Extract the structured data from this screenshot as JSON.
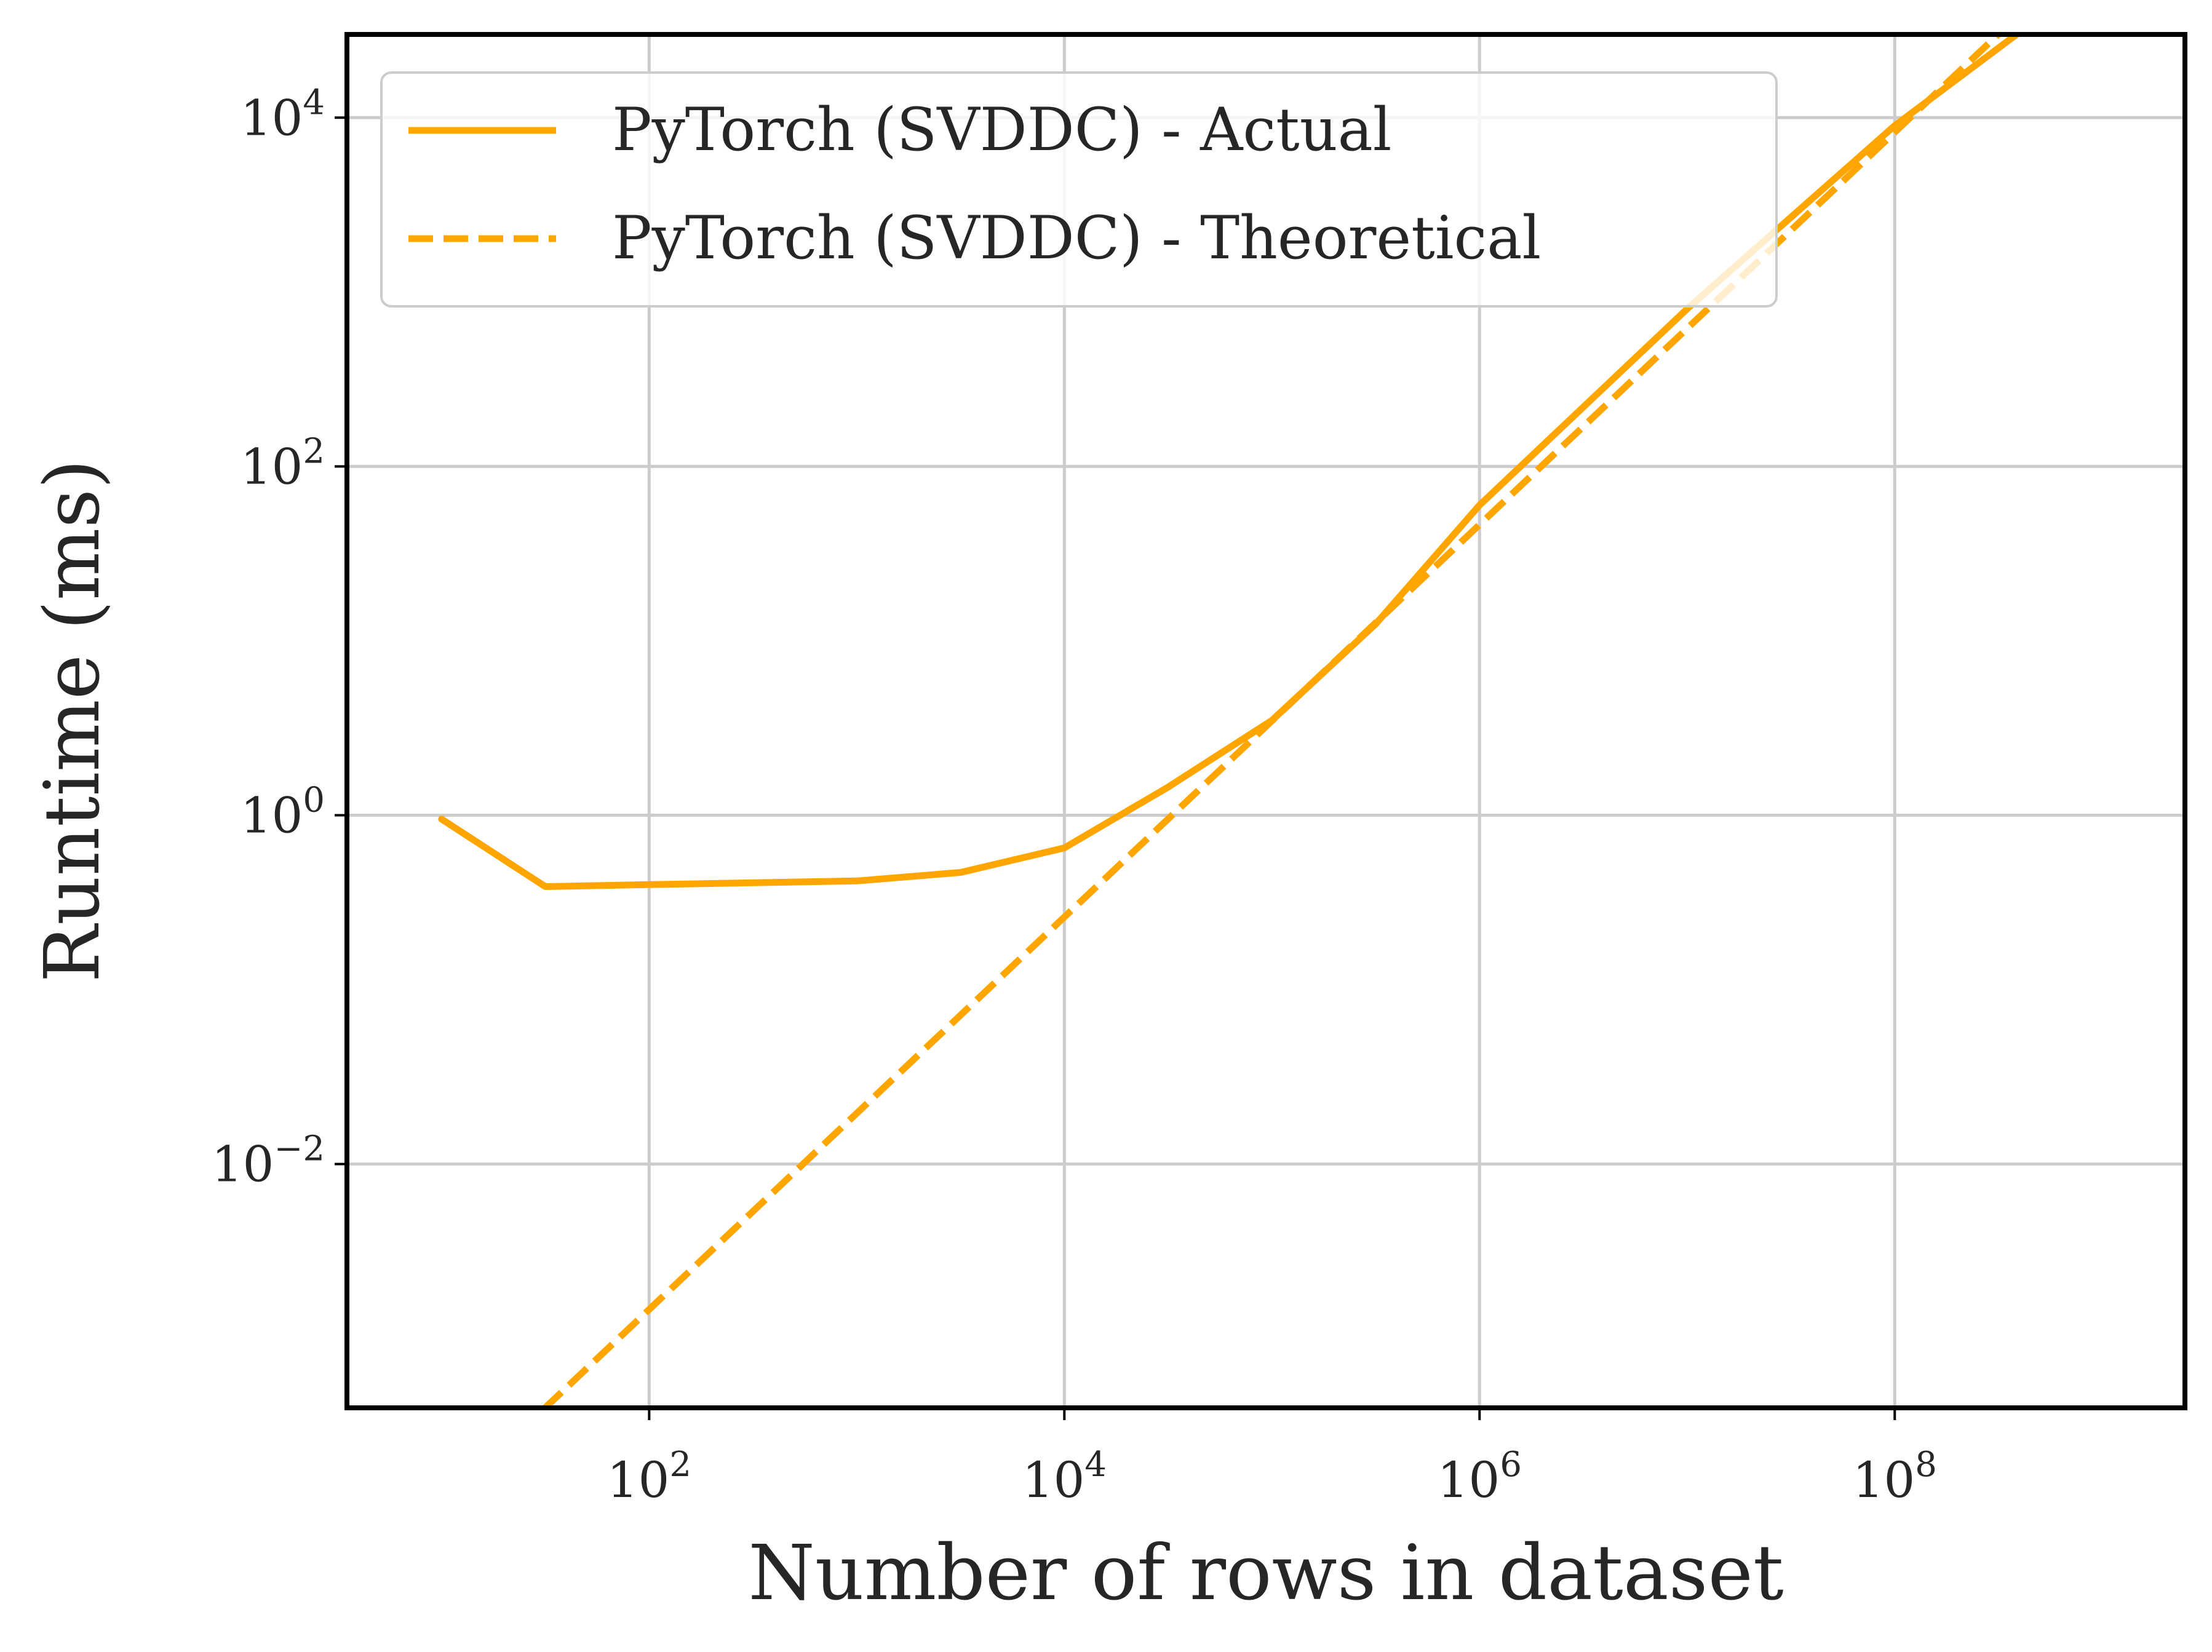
{
  "chart_data": {
    "type": "line",
    "title": "",
    "xlabel": "Number of rows in dataset",
    "ylabel": "Runtime (ms)",
    "x_scale": "log",
    "y_scale": "log",
    "xlim": [
      3.5,
      2500000000
    ],
    "ylim": [
      0.0004,
      30000
    ],
    "grid": true,
    "legend_position": "upper-left",
    "x_ticks": [
      {
        "base": "10",
        "exp": "2",
        "value": 100
      },
      {
        "base": "10",
        "exp": "4",
        "value": 10000
      },
      {
        "base": "10",
        "exp": "6",
        "value": 1000000
      },
      {
        "base": "10",
        "exp": "8",
        "value": 100000000
      }
    ],
    "y_ticks": [
      {
        "base": "10",
        "exp": "−2",
        "value": 0.01
      },
      {
        "base": "10",
        "exp": "0",
        "value": 1
      },
      {
        "base": "10",
        "exp": "2",
        "value": 100
      },
      {
        "base": "10",
        "exp": "4",
        "value": 10000
      }
    ],
    "series": [
      {
        "name": "PyTorch (SVDDC) - Actual",
        "style": "solid",
        "color": "#FFA500",
        "x": [
          10,
          31.6,
          100,
          316,
          1000,
          3162,
          10000,
          31623,
          100000,
          316228,
          1000000,
          10000000,
          100000000,
          1000000000
        ],
        "y": [
          0.95,
          0.39,
          0.4,
          0.41,
          0.42,
          0.47,
          0.65,
          1.45,
          3.5,
          12.5,
          60,
          800,
          9000,
          70000
        ]
      },
      {
        "name": "PyTorch (SVDDC) - Theoretical",
        "style": "dashed",
        "color": "#FFA500",
        "x": [
          10,
          1000000000
        ],
        "y": [
          0.00011,
          110000
        ]
      }
    ]
  }
}
